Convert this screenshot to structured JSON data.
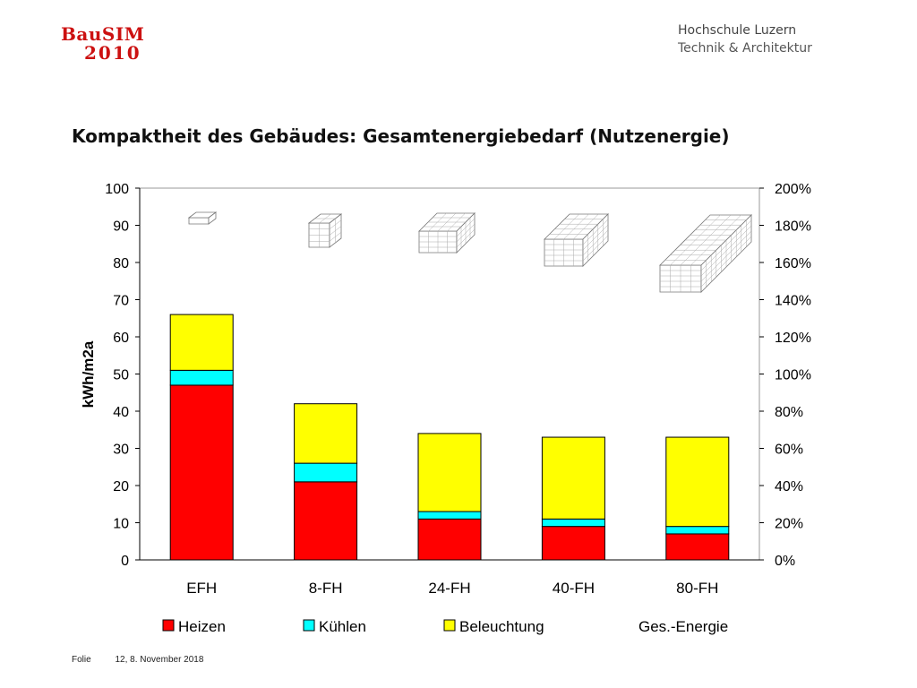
{
  "header": {
    "logo_line1": "BauSIM",
    "logo_line2": "2010",
    "institution_line1": "Hochschule Luzern",
    "institution_line2": "Technik & Architektur"
  },
  "colors": {
    "logo": "#cc1111",
    "heizen": "#ff0000",
    "kuehlen": "#00ffff",
    "beleuchtung": "#ffff00"
  },
  "chart_data": {
    "type": "bar",
    "stacked": true,
    "title": "Kompaktheit des Gebäudes: Gesamtenergiebedarf (Nutzenergie)",
    "categories": [
      "EFH",
      "8-FH",
      "24-FH",
      "40-FH",
      "80-FH"
    ],
    "series": [
      {
        "name": "Heizen",
        "color": "#ff0000",
        "values": [
          47,
          21,
          11,
          9,
          7
        ]
      },
      {
        "name": "Kühlen",
        "color": "#00ffff",
        "values": [
          4,
          5,
          2,
          2,
          2
        ]
      },
      {
        "name": "Beleuchtung",
        "color": "#ffff00",
        "values": [
          15,
          16,
          21,
          22,
          24
        ]
      }
    ],
    "legend_extra": "Ges.-Energie",
    "ylabel": "kWh/m2a",
    "ylim": [
      0,
      100
    ],
    "yticks": [
      "0",
      "10",
      "20",
      "30",
      "40",
      "50",
      "60",
      "70",
      "80",
      "90",
      "100"
    ],
    "y2lim": [
      0,
      200
    ],
    "y2ticks": [
      "0%",
      "20%",
      "40%",
      "60%",
      "80%",
      "100%",
      "120%",
      "140%",
      "160%",
      "180%",
      "200%"
    ],
    "legend_position": "bottom",
    "grid": false
  },
  "footer": {
    "label": "Folie",
    "page_date": "12, 8. November 2018"
  }
}
